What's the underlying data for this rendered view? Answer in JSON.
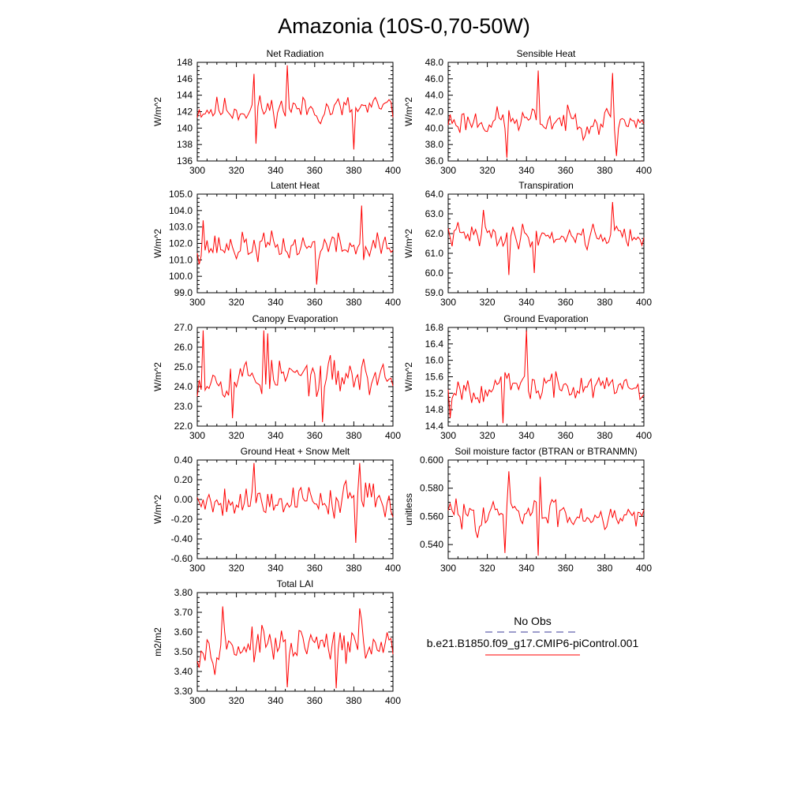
{
  "figure_title": "Amazonia (10S-0,70-50W)",
  "legend": {
    "obs_label": "No Obs",
    "model_label": "b.e21.B1850.f09_g17.CMIP6-piControl.001",
    "obs_color": "#3b3b9a",
    "model_color": "#ff0000"
  },
  "chart_data": [
    {
      "type": "line",
      "title": "Net Radiation",
      "ylabel": "W/m^2",
      "xlim": [
        300,
        400
      ],
      "ylim": [
        136,
        148
      ],
      "xticks": [
        "300",
        "320",
        "340",
        "360",
        "380",
        "400"
      ],
      "yticks": [
        "136",
        "138",
        "140",
        "142",
        "144",
        "146",
        "148"
      ],
      "seed": 11,
      "mean": 142.3,
      "amp": 1.7,
      "spikes": [
        [
          346,
          147.7
        ],
        [
          329,
          146.6
        ],
        [
          380,
          137.4
        ],
        [
          330,
          138.1
        ]
      ],
      "series": [
        {
          "name": "b.e21.B1850.f09_g17.CMIP6-piControl.001",
          "color": "#ff0000"
        }
      ]
    },
    {
      "type": "line",
      "title": "Sensible Heat",
      "ylabel": "W/m^2",
      "xlim": [
        300,
        400
      ],
      "ylim": [
        36.0,
        48.0
      ],
      "xticks": [
        "300",
        "320",
        "340",
        "360",
        "380",
        "400"
      ],
      "yticks": [
        "36.0",
        "38.0",
        "40.0",
        "42.0",
        "44.0",
        "46.0",
        "48.0"
      ],
      "seed": 23,
      "mean": 40.9,
      "amp": 1.7,
      "spikes": [
        [
          346,
          47.0
        ],
        [
          384,
          46.7
        ],
        [
          330,
          36.4
        ],
        [
          386,
          36.6
        ]
      ],
      "series": [
        {
          "name": "b.e21.B1850.f09_g17.CMIP6-piControl.001",
          "color": "#ff0000"
        }
      ]
    },
    {
      "type": "line",
      "title": "Latent Heat",
      "ylabel": "W/m^2",
      "xlim": [
        300,
        400
      ],
      "ylim": [
        99.0,
        105.0
      ],
      "xticks": [
        "300",
        "320",
        "340",
        "360",
        "380",
        "400"
      ],
      "yticks": [
        "99.0",
        "100.0",
        "101.0",
        "102.0",
        "103.0",
        "104.0",
        "105.0"
      ],
      "seed": 37,
      "mean": 101.8,
      "amp": 0.9,
      "spikes": [
        [
          384,
          104.3
        ],
        [
          361,
          99.5
        ],
        [
          303,
          103.4
        ]
      ],
      "series": [
        {
          "name": "b.e21.B1850.f09_g17.CMIP6-piControl.001",
          "color": "#ff0000"
        }
      ]
    },
    {
      "type": "line",
      "title": "Transpiration",
      "ylabel": "W/m^2",
      "xlim": [
        300,
        400
      ],
      "ylim": [
        59.0,
        64.0
      ],
      "xticks": [
        "300",
        "320",
        "340",
        "360",
        "380",
        "400"
      ],
      "yticks": [
        "59.0",
        "60.0",
        "61.0",
        "62.0",
        "63.0",
        "64.0"
      ],
      "seed": 41,
      "mean": 61.9,
      "amp": 0.6,
      "spikes": [
        [
          384,
          63.6
        ],
        [
          331,
          59.9
        ],
        [
          318,
          63.2
        ],
        [
          344,
          60.0
        ]
      ],
      "series": [
        {
          "name": "b.e21.B1850.f09_g17.CMIP6-piControl.001",
          "color": "#ff0000"
        }
      ]
    },
    {
      "type": "line",
      "title": "Canopy Evaporation",
      "ylabel": "W/m^2",
      "xlim": [
        300,
        400
      ],
      "ylim": [
        22.0,
        27.0
      ],
      "xticks": [
        "300",
        "320",
        "340",
        "360",
        "380",
        "400"
      ],
      "yticks": [
        "22.0",
        "23.0",
        "24.0",
        "25.0",
        "26.0",
        "27.0"
      ],
      "seed": 53,
      "mean": 24.5,
      "amp": 1.0,
      "spikes": [
        [
          303,
          26.9
        ],
        [
          334,
          26.9
        ],
        [
          336,
          26.7
        ],
        [
          318,
          22.4
        ],
        [
          364,
          22.2
        ]
      ],
      "series": [
        {
          "name": "b.e21.B1850.f09_g17.CMIP6-piControl.001",
          "color": "#ff0000"
        }
      ]
    },
    {
      "type": "line",
      "title": "Ground Evaporation",
      "ylabel": "W/m^2",
      "xlim": [
        300,
        400
      ],
      "ylim": [
        14.4,
        16.8
      ],
      "xticks": [
        "300",
        "320",
        "340",
        "360",
        "380",
        "400"
      ],
      "yticks": [
        "14.4",
        "14.8",
        "15.2",
        "15.6",
        "16.0",
        "16.4",
        "16.8"
      ],
      "seed": 67,
      "mean": 15.35,
      "amp": 0.35,
      "spikes": [
        [
          340,
          16.75
        ],
        [
          328,
          14.4
        ],
        [
          301,
          14.6
        ]
      ],
      "series": [
        {
          "name": "b.e21.B1850.f09_g17.CMIP6-piControl.001",
          "color": "#ff0000"
        }
      ]
    },
    {
      "type": "line",
      "title": "Ground Heat + Snow Melt",
      "ylabel": "W/m^2",
      "xlim": [
        300,
        400
      ],
      "ylim": [
        -0.6,
        0.4
      ],
      "xticks": [
        "300",
        "320",
        "340",
        "360",
        "380",
        "400"
      ],
      "yticks": [
        "-0.60",
        "-0.40",
        "-0.20",
        "0.00",
        "0.20",
        "0.40"
      ],
      "seed": 79,
      "mean": 0.0,
      "amp": 0.18,
      "spikes": [
        [
          329,
          0.38
        ],
        [
          383,
          0.39
        ],
        [
          381,
          -0.44
        ]
      ],
      "series": [
        {
          "name": "b.e21.B1850.f09_g17.CMIP6-piControl.001",
          "color": "#ff0000"
        }
      ]
    },
    {
      "type": "line",
      "title": "Soil moisture factor (BTRAN or BTRANMN)",
      "ylabel": "unitless",
      "xlim": [
        300,
        400
      ],
      "ylim": [
        0.53,
        0.6
      ],
      "xticks": [
        "300",
        "320",
        "340",
        "360",
        "380",
        "400"
      ],
      "yticks": [
        "0.540",
        "0.560",
        "0.580",
        "0.600"
      ],
      "seed": 83,
      "mean": 0.562,
      "amp": 0.011,
      "spikes": [
        [
          331,
          0.592
        ],
        [
          346,
          0.532
        ],
        [
          347,
          0.588
        ],
        [
          329,
          0.534
        ]
      ],
      "series": [
        {
          "name": "b.e21.B1850.f09_g17.CMIP6-piControl.001",
          "color": "#ff0000"
        }
      ]
    },
    {
      "type": "line",
      "title": "Total LAI",
      "ylabel": "m2/m2",
      "xlim": [
        300,
        400
      ],
      "ylim": [
        3.3,
        3.8
      ],
      "xticks": [
        "300",
        "320",
        "340",
        "360",
        "380",
        "400"
      ],
      "yticks": [
        "3.30",
        "3.40",
        "3.50",
        "3.60",
        "3.70",
        "3.80"
      ],
      "seed": 97,
      "mean": 3.53,
      "amp": 0.09,
      "spikes": [
        [
          313,
          3.73
        ],
        [
          383,
          3.72
        ],
        [
          371,
          3.3
        ],
        [
          346,
          3.32
        ]
      ],
      "series": [
        {
          "name": "b.e21.B1850.f09_g17.CMIP6-piControl.001",
          "color": "#ff0000"
        }
      ]
    }
  ]
}
